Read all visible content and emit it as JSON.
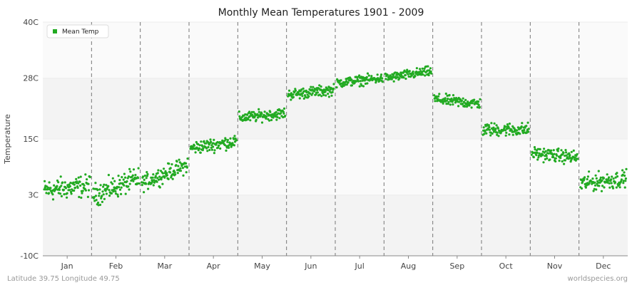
{
  "chart_data": {
    "type": "scatter",
    "title": "Monthly Mean Temperatures 1901 - 2009",
    "xlabel": "",
    "ylabel": "Temperature",
    "categories": [
      "Jan",
      "Feb",
      "Mar",
      "Apr",
      "May",
      "Jun",
      "Jul",
      "Aug",
      "Sep",
      "Oct",
      "Nov",
      "Dec"
    ],
    "y_ticks": [
      "40C",
      "28C",
      "15C",
      "3C",
      "-10C"
    ],
    "y_tick_values": [
      40,
      28,
      15,
      3,
      -10
    ],
    "ylim": [
      -10,
      40
    ],
    "grid": true,
    "legend": "top-left",
    "series": [
      {
        "name": "Mean Temp",
        "color": "#22aa22",
        "years": 109,
        "monthly_mean": [
          4.5,
          4.8,
          7.5,
          13.8,
          20.0,
          25.0,
          27.5,
          28.5,
          23.0,
          17.0,
          11.5,
          6.0
        ],
        "monthly_trend_start": [
          4.0,
          3.0,
          5.5,
          13.0,
          19.5,
          24.5,
          27.0,
          28.0,
          23.5,
          17.0,
          12.0,
          5.5
        ],
        "monthly_trend_end": [
          5.0,
          6.5,
          9.5,
          14.5,
          20.5,
          25.5,
          28.0,
          29.5,
          22.5,
          17.0,
          11.0,
          6.5
        ],
        "monthly_spread": [
          2.0,
          2.0,
          1.5,
          1.2,
          1.0,
          1.0,
          0.9,
          0.9,
          1.0,
          1.2,
          1.2,
          1.6
        ]
      }
    ]
  },
  "footer": {
    "location": "Latitude 39.75 Longitude 49.75",
    "source": "worldspecies.org"
  }
}
